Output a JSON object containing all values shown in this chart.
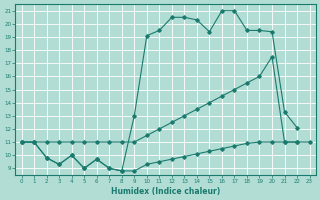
{
  "xlabel": "Humidex (Indice chaleur)",
  "bg_color": "#b2ddd4",
  "grid_color": "#ffffff",
  "line_color": "#1a7a6e",
  "xlim": [
    -0.5,
    23.5
  ],
  "ylim": [
    8.5,
    21.5
  ],
  "xticks": [
    0,
    1,
    2,
    3,
    4,
    5,
    6,
    7,
    8,
    9,
    10,
    11,
    12,
    13,
    14,
    15,
    16,
    17,
    18,
    19,
    20,
    21,
    22,
    23
  ],
  "yticks": [
    9,
    10,
    11,
    12,
    13,
    14,
    15,
    16,
    17,
    18,
    19,
    20,
    21
  ],
  "line1_x": [
    0,
    1,
    2,
    3,
    4,
    5,
    6,
    7,
    8,
    9,
    10,
    11,
    12,
    13,
    14,
    15,
    16,
    17,
    18,
    19,
    20,
    21,
    22,
    23
  ],
  "line1_y": [
    11,
    11,
    9.8,
    9.3,
    10.0,
    9.0,
    9.7,
    9.0,
    8.8,
    8.8,
    9.3,
    9.5,
    9.7,
    9.9,
    10.1,
    10.3,
    10.5,
    10.7,
    10.9,
    11.0,
    11.0,
    11.0,
    11.0,
    11.0
  ],
  "line2_x": [
    0,
    1,
    2,
    3,
    4,
    5,
    6,
    7,
    8,
    9,
    10,
    11,
    12,
    13,
    14,
    15,
    16,
    17,
    18,
    19,
    20,
    21,
    22
  ],
  "line2_y": [
    11,
    11,
    11,
    11,
    11,
    11,
    11,
    11,
    11,
    11,
    11.5,
    12.0,
    12.5,
    13.0,
    13.5,
    14.0,
    14.5,
    15.0,
    15.5,
    16.0,
    17.5,
    11.0,
    11.0
  ],
  "line3_x": [
    0,
    1,
    2,
    3,
    4,
    5,
    6,
    7,
    8,
    9,
    10,
    11,
    12,
    13,
    14,
    15,
    16,
    17,
    18,
    19,
    20,
    21,
    22
  ],
  "line3_y": [
    11,
    11,
    9.8,
    9.3,
    10.0,
    9.0,
    9.7,
    9.0,
    8.8,
    13.0,
    19.1,
    19.5,
    20.5,
    20.5,
    20.3,
    19.4,
    21.0,
    21.0,
    19.5,
    19.5,
    19.4,
    13.3,
    12.1
  ]
}
